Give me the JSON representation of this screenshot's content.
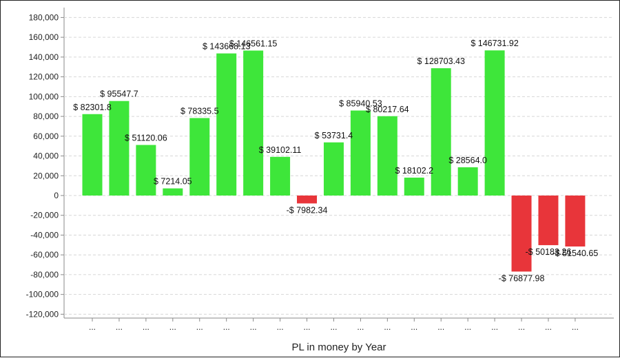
{
  "chart_data": {
    "type": "bar",
    "xlabel": "PL in money by Year",
    "ylabel": "",
    "ylim": [
      -120000,
      180000
    ],
    "y_ticks": [
      "180,000",
      "160,000",
      "140,000",
      "120,000",
      "100,000",
      "80,000",
      "60,000",
      "40,000",
      "20,000",
      "0",
      "-20,000",
      "-40,000",
      "-60,000",
      "-80,000",
      "-100,000",
      "-120,000"
    ],
    "categories": [
      "...",
      "...",
      "...",
      "...",
      "...",
      "...",
      "...",
      "...",
      "...",
      "...",
      "...",
      "...",
      "...",
      "...",
      "...",
      "...",
      "...",
      "...",
      "..."
    ],
    "values": [
      82301.8,
      95547.7,
      51120.06,
      7214.05,
      78335.5,
      143668.13,
      146561.15,
      39102.11,
      -7982.34,
      53731.4,
      85940.53,
      80217.64,
      18102.2,
      128703.43,
      28564.0,
      146731.92,
      -76877.98,
      -50183.26,
      -51540.65
    ],
    "data_labels": [
      "$ 82301.8",
      "$ 95547.7",
      "$ 51120.06",
      "$ 7214.05",
      "$ 78335.5",
      "$ 143668.13",
      "$ 146561.15",
      "$ 39102.11",
      "-$ 7982.34",
      "$ 53731.4",
      "$ 85940.53",
      "$ 80217.64",
      "$ 18102.2",
      "$ 128703.43",
      "$ 28564.0",
      "$ 146731.92",
      "-$ 76877.98",
      "-$ 50183.26",
      "-$ 51540.65"
    ],
    "grid": true,
    "colors": {
      "positive": "#3ee63a",
      "negative": "#e8353a",
      "grid": "#d6d6d6"
    }
  }
}
